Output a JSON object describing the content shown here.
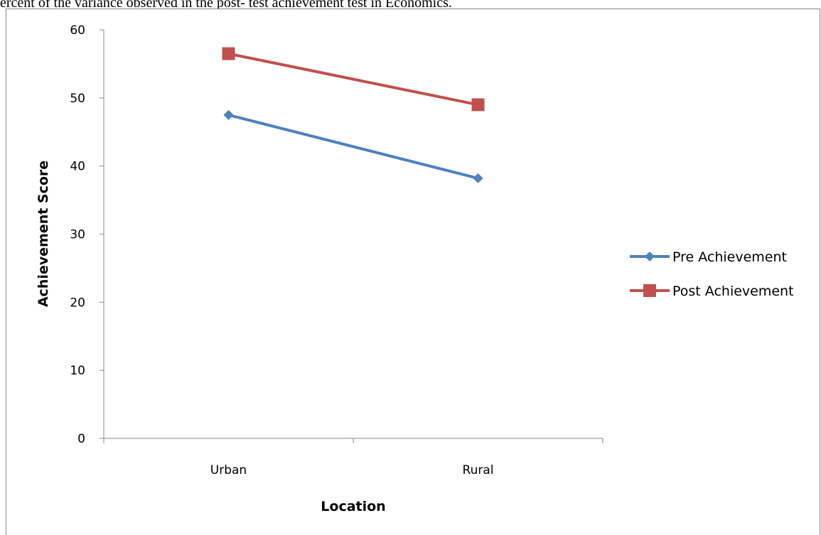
{
  "caption": "ercent of the variance observed in the post- test achievement test in Economics.",
  "chart_data": {
    "type": "line",
    "categories": [
      "Urban",
      "Rural"
    ],
    "series": [
      {
        "name": "Pre Achievement",
        "values": [
          47.5,
          38.2
        ],
        "color": "#4f81bd",
        "marker": "diamond"
      },
      {
        "name": "Post Achievement",
        "values": [
          56.5,
          49.0
        ],
        "color": "#c0504d",
        "marker": "square"
      }
    ],
    "xlabel": "Location",
    "ylabel": "Achievement Score",
    "ylim": [
      0,
      60
    ],
    "yticks": [
      0,
      10,
      20,
      30,
      40,
      50,
      60
    ],
    "grid": false,
    "legend_position": "right"
  }
}
